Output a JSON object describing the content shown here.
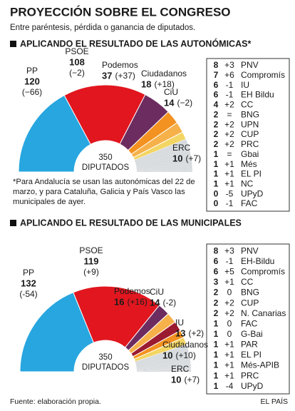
{
  "title": "PROYECCIÓN SOBRE EL CONGRESO",
  "subtitle": "Entre paréntesis, pérdida o ganancia de diputados.",
  "source": "Fuente: elaboración propia.",
  "brand": "EL PAÍS",
  "chart_data": [
    {
      "type": "semicircle",
      "title": "APLICANDO EL RESULTADO DE LAS AUTONÓMICAS*",
      "categories": [
        "PP",
        "PSOE",
        "Podemos",
        "Ciudadanos",
        "CiU",
        "ERC"
      ],
      "colors": [
        "#27a6df",
        "#e1161f",
        "#6d2c5f",
        "#f39220",
        "#f6b14a",
        "#f3d563"
      ],
      "values": [
        120,
        108,
        37,
        18,
        14,
        10
      ],
      "changes": [
        -66,
        -2,
        37,
        18,
        -2,
        7
      ],
      "change_labels": [
        "(−66)",
        "(−2)",
        "(+37)",
        "(+18)",
        "(−2)",
        "(+7)"
      ],
      "others": {
        "color": "#d8dcdf",
        "categories": [
          "PNV",
          "Compromís",
          "IU",
          "EH Bildu",
          "CC",
          "BNG",
          "UPN",
          "CUP",
          "PRC",
          "Gbai",
          "Més",
          "EL PI",
          "NC",
          "UPyD",
          "FAC"
        ],
        "values": [
          8,
          7,
          6,
          6,
          4,
          2,
          2,
          2,
          2,
          1,
          1,
          1,
          1,
          0,
          0
        ],
        "changes": [
          3,
          6,
          -1,
          -1,
          2,
          0,
          2,
          2,
          2,
          0,
          1,
          1,
          1,
          -5,
          -1
        ],
        "change_labels": [
          "+3",
          "+6",
          "-1",
          "-1",
          "+2",
          "=",
          "+2",
          "+2",
          "+2",
          "=",
          "+1",
          "+1",
          "+1",
          "-5",
          "-1"
        ]
      },
      "total": {
        "value": 350,
        "label": "DIPUTADOS"
      },
      "note": "*Para Andalucía se usan las autonómicas del 22 de marzo, y para Cataluña, Galicia y País Vasco las municipales de ayer."
    },
    {
      "type": "semicircle",
      "title": "APLICANDO EL RESULTADO DE LAS MUNICIPALES",
      "categories": [
        "PP",
        "PSOE",
        "Podemos",
        "CiU",
        "IU",
        "Ciudadanos",
        "ERC"
      ],
      "colors": [
        "#27a6df",
        "#e1161f",
        "#6d2c5f",
        "#f6b14a",
        "#9b1b30",
        "#f39220",
        "#f3d563"
      ],
      "values": [
        132,
        119,
        16,
        14,
        13,
        10,
        10
      ],
      "changes": [
        -54,
        9,
        16,
        -2,
        2,
        10,
        7
      ],
      "change_labels": [
        "(-54)",
        "(+9)",
        "(+16)",
        "(-2)",
        "(+2)",
        "(+10)",
        "(+7)"
      ],
      "others": {
        "color": "#d8dcdf",
        "categories": [
          "PNV",
          "EH-Bildu",
          "Compromís",
          "CC",
          "BNG",
          "CUP",
          "N. Canarias",
          "FAC",
          "G-Bai",
          "PAR",
          "EL PI",
          "Més-APIB",
          "PRC",
          "UPyD"
        ],
        "values": [
          8,
          6,
          6,
          3,
          2,
          2,
          2,
          1,
          1,
          1,
          1,
          1,
          1,
          1
        ],
        "changes": [
          3,
          -1,
          5,
          1,
          0,
          2,
          2,
          0,
          0,
          1,
          1,
          1,
          1,
          -4
        ],
        "change_labels": [
          "+3",
          "-1",
          "+5",
          "+1",
          "0",
          "+2",
          "+2",
          "0",
          "0",
          "+1",
          "+1",
          "+1",
          "+1",
          "-4"
        ]
      },
      "total": {
        "value": 350,
        "label": "DIPUTADOS"
      }
    }
  ]
}
